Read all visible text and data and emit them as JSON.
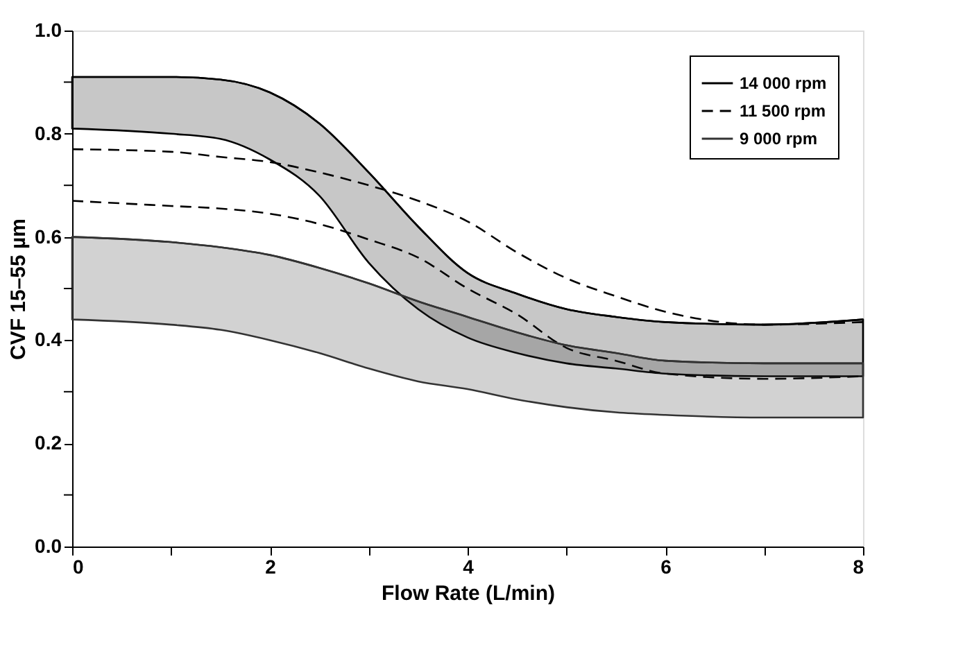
{
  "chart_data": {
    "type": "line",
    "xlabel": "Flow Rate (L/min)",
    "ylabel": "CVF 15–55 µm",
    "x": [
      0,
      1,
      1.5,
      2,
      2.5,
      3,
      3.5,
      4,
      4.5,
      5,
      5.5,
      6,
      7,
      8
    ],
    "series": [
      {
        "name": "14 000 rpm",
        "color": "#000000",
        "line_style": "solid",
        "values": [
          0.91,
          0.91,
          0.905,
          0.88,
          0.82,
          0.725,
          0.62,
          0.53,
          0.49,
          0.46,
          0.445,
          0.435,
          0.43,
          0.44
        ],
        "upper": [
          0.91,
          0.91,
          0.905,
          0.88,
          0.82,
          0.725,
          0.62,
          0.53,
          0.49,
          0.46,
          0.445,
          0.435,
          0.43,
          0.44
        ],
        "lower": [
          0.81,
          0.8,
          0.79,
          0.75,
          0.68,
          0.55,
          0.46,
          0.405,
          0.375,
          0.355,
          0.345,
          0.335,
          0.33,
          0.33
        ]
      },
      {
        "name": "11 500 rpm",
        "color": "#000000",
        "line_style": "dashed",
        "values": [
          0.77,
          0.765,
          0.755,
          0.745,
          0.725,
          0.7,
          0.67,
          0.63,
          0.57,
          0.52,
          0.485,
          0.455,
          0.43,
          0.435
        ]
      },
      {
        "color": "#000000",
        "line_style": "dashed",
        "values": [
          0.67,
          0.66,
          0.655,
          0.645,
          0.625,
          0.595,
          0.56,
          0.5,
          0.45,
          0.385,
          0.36,
          0.335,
          0.325,
          0.33
        ]
      },
      {
        "name": "9 000 rpm",
        "color": "#333333",
        "line_style": "solid",
        "values": [
          0.6,
          0.59,
          0.58,
          0.565,
          0.54,
          0.51,
          0.475,
          0.445,
          0.415,
          0.39,
          0.375,
          0.36,
          0.355,
          0.355
        ],
        "upper": [
          0.6,
          0.59,
          0.58,
          0.565,
          0.54,
          0.51,
          0.475,
          0.445,
          0.415,
          0.39,
          0.375,
          0.36,
          0.355,
          0.355
        ],
        "lower": [
          0.44,
          0.43,
          0.42,
          0.4,
          0.375,
          0.345,
          0.32,
          0.305,
          0.285,
          0.27,
          0.26,
          0.255,
          0.25,
          0.25
        ]
      }
    ],
    "xlim": [
      0,
      8
    ],
    "xticks": [
      0,
      {
        "value": 1,
        "label": null
      },
      2,
      {
        "value": 3,
        "label": null
      },
      4,
      {
        "value": 5,
        "label": null
      },
      6,
      {
        "value": 7,
        "label": null
      },
      8
    ],
    "ylim": [
      0,
      1
    ],
    "yticks": [
      {
        "value": 0,
        "label": "0.0"
      },
      {
        "value": 0.1,
        "label": null
      },
      {
        "value": 0.2,
        "label": "0.2"
      },
      {
        "value": 0.3,
        "label": null
      },
      {
        "value": 0.4,
        "label": "0.4"
      },
      {
        "value": 0.5,
        "label": null
      },
      {
        "value": 0.6,
        "label": "0.6"
      },
      {
        "value": 0.7,
        "label": null
      },
      {
        "value": 0.8,
        "label": "0.8"
      },
      {
        "value": 0.9,
        "label": null
      },
      {
        "value": 1,
        "label": "1.0"
      }
    ],
    "grid": false,
    "legend": "top right"
  }
}
